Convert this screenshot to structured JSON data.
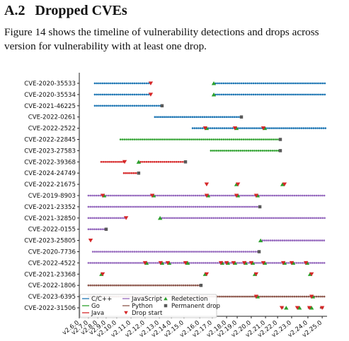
{
  "section": {
    "number": "A.2",
    "title": "Dropped CVEs",
    "paragraph": "Figure 14 shows the timeline of vulnerability detections and drops across version for vulnerability with at least one drop."
  },
  "chart_data": {
    "type": "timeline",
    "xlim": [
      0,
      100
    ],
    "xticks": [
      {
        "value": 0,
        "label": "v2.6.0"
      },
      {
        "value": 3.7,
        "label": "v2.7.0"
      },
      {
        "value": 7.5,
        "label": "v2.8.0"
      },
      {
        "value": 10.9,
        "label": "v2.9.0"
      },
      {
        "value": 15.2,
        "label": "v2.10.0"
      },
      {
        "value": 21,
        "label": "v2.11.0"
      },
      {
        "value": 26.7,
        "label": "v2.12.0"
      },
      {
        "value": 32.5,
        "label": "v2.13.0"
      },
      {
        "value": 37.4,
        "label": "v2.14.0"
      },
      {
        "value": 42.5,
        "label": "v2.15.0"
      },
      {
        "value": 48.9,
        "label": "v2.16.0"
      },
      {
        "value": 54,
        "label": "v2.17.0"
      },
      {
        "value": 59.8,
        "label": "v2.18.0"
      },
      {
        "value": 64.1,
        "label": "v2.19.0"
      },
      {
        "value": 69.8,
        "label": "v2.20.0"
      },
      {
        "value": 75.6,
        "label": "v2.21.0"
      },
      {
        "value": 80.5,
        "label": "v2.22.0"
      },
      {
        "value": 86.2,
        "label": "v2.23.0"
      },
      {
        "value": 92.8,
        "label": "v2.24.0"
      },
      {
        "value": 98.6,
        "label": "v2.25.0"
      }
    ],
    "legend": [
      {
        "name": "C/C++",
        "color": "#1f77b4",
        "marker": "line"
      },
      {
        "name": "Go",
        "color": "#2ca02c",
        "marker": "line"
      },
      {
        "name": "Java",
        "color": "#d62728",
        "marker": "line"
      },
      {
        "name": "JavaScript",
        "color": "#9467bd",
        "marker": "line"
      },
      {
        "name": "Python",
        "color": "#8c564b",
        "marker": "line"
      },
      {
        "name": "Drop start",
        "color": "#d62728",
        "marker": "triangle-down"
      },
      {
        "name": "Redetection",
        "color": "#2ca02c",
        "marker": "triangle-up"
      },
      {
        "name": "Permanent drop",
        "color": "#595959",
        "marker": "square"
      }
    ],
    "rows": [
      {
        "cve": "CVE-2020-35533",
        "color": "#1f77b4",
        "segments": [
          [
            6.3,
            29
          ],
          [
            54.6,
            100
          ]
        ],
        "drop_start": [
          29
        ],
        "redetection": [
          54.6
        ],
        "permanent_drop": []
      },
      {
        "cve": "CVE-2020-35534",
        "color": "#1f77b4",
        "segments": [
          [
            6.3,
            29
          ],
          [
            54.6,
            100
          ]
        ],
        "drop_start": [
          29
        ],
        "redetection": [
          54.6
        ],
        "permanent_drop": []
      },
      {
        "cve": "CVE-2021-46225",
        "color": "#1f77b4",
        "segments": [
          [
            6.3,
            33.6
          ]
        ],
        "drop_start": [],
        "redetection": [],
        "permanent_drop": [
          33.6
        ]
      },
      {
        "cve": "CVE-2022-0261",
        "color": "#1f77b4",
        "segments": [
          [
            30.7,
            65.8
          ]
        ],
        "drop_start": [],
        "redetection": [],
        "permanent_drop": [
          65.8
        ]
      },
      {
        "cve": "CVE-2022-2522",
        "color": "#1f77b4",
        "segments": [
          [
            46,
            100
          ]
        ],
        "drop_start": [
          51.1,
          63.2,
          74.7
        ],
        "redetection": [
          51.7,
          63.8,
          75.3
        ],
        "permanent_drop": []
      },
      {
        "cve": "CVE-2022-22845",
        "color": "#2ca02c",
        "segments": [
          [
            16.7,
            81.6
          ]
        ],
        "drop_start": [],
        "redetection": [],
        "permanent_drop": [
          81.6
        ]
      },
      {
        "cve": "CVE-2023-27583",
        "color": "#2ca02c",
        "segments": [
          [
            53.4,
            81.6
          ]
        ],
        "drop_start": [],
        "redetection": [],
        "permanent_drop": [
          81.6
        ]
      },
      {
        "cve": "CVE-2022-39368",
        "color": "#d62728",
        "segments": [
          [
            8.9,
            18.4
          ],
          [
            24.1,
            43.1
          ]
        ],
        "drop_start": [
          18.4
        ],
        "redetection": [
          24.1
        ],
        "permanent_drop": [
          43.1
        ]
      },
      {
        "cve": "CVE-2024-24749",
        "color": "#d62728",
        "segments": [
          [
            18.1,
            24.1
          ]
        ],
        "drop_start": [],
        "redetection": [],
        "permanent_drop": [
          24.1
        ]
      },
      {
        "cve": "CVE-2022-21675",
        "color": "#d62728",
        "segments": [
          [
            63.8,
            64.4
          ],
          [
            82.5,
            83.3
          ]
        ],
        "drop_start": [
          51.7,
          64.4,
          83.3
        ],
        "redetection": [
          63.8,
          82.5
        ],
        "permanent_drop": []
      },
      {
        "cve": "CVE-2019-8903",
        "color": "#9467bd",
        "segments": [
          [
            3.7,
            100
          ]
        ],
        "drop_start": [
          9.5,
          29.6,
          51.7,
          63.8,
          71.8
        ],
        "redetection": [
          10.1,
          30.2,
          52.3,
          64.4,
          72.4
        ],
        "permanent_drop": []
      },
      {
        "cve": "CVE-2021-23352",
        "color": "#9467bd",
        "segments": [
          [
            3.7,
            73.3
          ]
        ],
        "drop_start": [],
        "redetection": [],
        "permanent_drop": [
          73.3
        ]
      },
      {
        "cve": "CVE-2021-32850",
        "color": "#9467bd",
        "segments": [
          [
            3.7,
            19
          ],
          [
            32.8,
            100
          ]
        ],
        "drop_start": [
          19
        ],
        "redetection": [
          32.8
        ],
        "permanent_drop": []
      },
      {
        "cve": "CVE-2022-0155",
        "color": "#9467bd",
        "segments": [
          [
            3.7,
            10.9
          ]
        ],
        "drop_start": [],
        "redetection": [],
        "permanent_drop": [
          10.9
        ]
      },
      {
        "cve": "CVE-2023-25805",
        "color": "#9467bd",
        "segments": [
          [
            73.6,
            100
          ]
        ],
        "drop_start": [
          4.6
        ],
        "redetection": [
          73.6
        ],
        "permanent_drop": []
      },
      {
        "cve": "CVE-2020-7736",
        "color": "#9467bd",
        "segments": [
          [
            5.5,
            73
          ]
        ],
        "drop_start": [],
        "redetection": [],
        "permanent_drop": [
          73
        ]
      },
      {
        "cve": "CVE-2022-4522",
        "color": "#9467bd",
        "segments": [
          [
            3.7,
            100
          ]
        ],
        "drop_start": [
          26.7,
          33,
          35.9,
          43.1,
          57.5,
          59.8,
          62.6,
          67,
          69.8,
          74.7,
          82.8,
          86.2,
          92
        ],
        "redetection": [
          27.3,
          33.6,
          36.5,
          44,
          58,
          60.3,
          63.2,
          67.5,
          70.4,
          75.3,
          83.3,
          86.8,
          92.5
        ],
        "permanent_drop": []
      },
      {
        "cve": "CVE-2021-23368",
        "color": "#9467bd",
        "segments": [
          [
            9,
            9.5
          ],
          [
            51.1,
            51.7
          ],
          [
            71.3,
            71.8
          ],
          [
            93.7,
            94.3
          ]
        ],
        "drop_start": [
          9.5,
          51.7,
          71.8,
          94.3
        ],
        "redetection": [
          9,
          51.1,
          71.3,
          93.7
        ],
        "permanent_drop": []
      },
      {
        "cve": "CVE-2022-1806",
        "color": "#8c564b",
        "segments": [
          [
            3.7,
            49.4
          ]
        ],
        "drop_start": [],
        "redetection": [],
        "permanent_drop": [
          49.4
        ]
      },
      {
        "cve": "CVE-2023-6395",
        "color": "#8c564b",
        "segments": [
          [
            3.7,
            100
          ]
        ],
        "drop_start": [
          71.8,
          94.3
        ],
        "redetection": [
          72.4,
          94.8
        ],
        "permanent_drop": []
      },
      {
        "cve": "CVE-2022-31506",
        "color": "#8c564b",
        "segments": [
          [
            82.5,
            83.3
          ],
          [
            88.5,
            89.4
          ],
          [
            93.1,
            94
          ],
          [
            98,
            98.9
          ]
        ],
        "drop_start": [
          82.2,
          88.5,
          93.4,
          98.6
        ],
        "redetection": [
          84,
          89.4,
          94.3
        ],
        "permanent_drop": []
      }
    ]
  }
}
